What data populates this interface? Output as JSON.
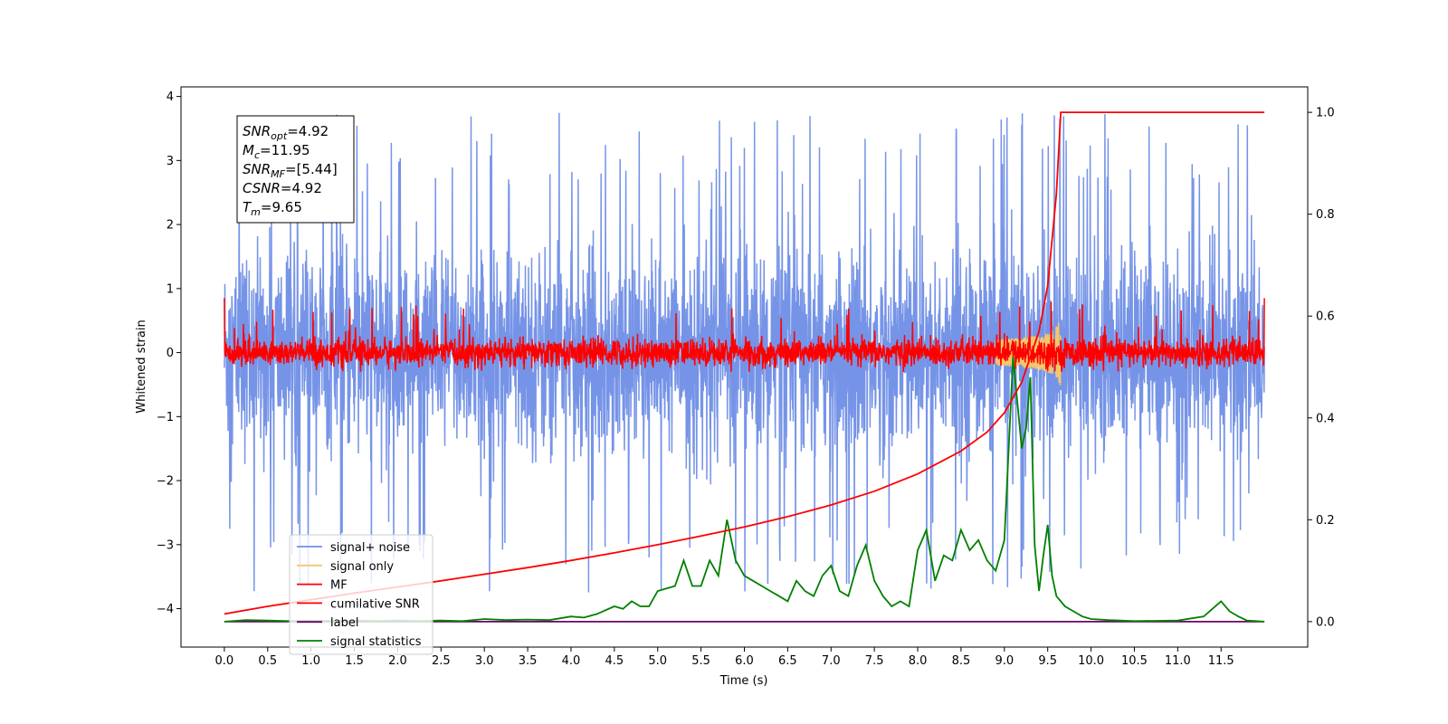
{
  "chart_data": {
    "type": "line",
    "xlabel": "Time (s)",
    "ylabel": "Whitened strain",
    "xlim": [
      -0.5,
      12.5
    ],
    "ylim": [
      -4.6,
      4.15
    ],
    "y2lim": [
      -0.05,
      1.05
    ],
    "xticks": [
      0.0,
      0.5,
      1.0,
      1.5,
      2.0,
      2.5,
      3.0,
      3.5,
      4.0,
      4.5,
      5.0,
      5.5,
      6.0,
      6.5,
      7.0,
      7.5,
      8.0,
      8.5,
      9.0,
      9.5,
      10.0,
      10.5,
      11.0,
      11.5
    ],
    "xtick_labels": [
      "0.0",
      "0.5",
      "1.0",
      "1.5",
      "2.0",
      "2.5",
      "3.0",
      "3.5",
      "4.0",
      "4.5",
      "5.0",
      "5.5",
      "6.0",
      "6.5",
      "7.0",
      "7.5",
      "8.0",
      "8.5",
      "9.0",
      "9.5",
      "10.0",
      "10.5",
      "11.0",
      "11.5"
    ],
    "yticks": [
      -4,
      -3,
      -2,
      -1,
      0,
      1,
      2,
      3,
      4
    ],
    "ytick_labels": [
      "−4",
      "−3",
      "−2",
      "−1",
      "0",
      "1",
      "2",
      "3",
      "4"
    ],
    "y2ticks": [
      0.0,
      0.2,
      0.4,
      0.6,
      0.8,
      1.0
    ],
    "y2tick_labels": [
      "0.0",
      "0.2",
      "0.4",
      "0.6",
      "0.8",
      "1.0"
    ],
    "grid": false,
    "legend_position": "lower-left",
    "annotation": {
      "lines": [
        {
          "sym": "SNR",
          "sub": "opt",
          "rest": "=4.92"
        },
        {
          "sym": "M",
          "sub": "c",
          "rest": "=11.95"
        },
        {
          "sym": "SNR",
          "sub": "MF",
          "rest": "=[5.44]"
        },
        {
          "sym": "CSNR",
          "sub": "",
          "rest": "=4.92"
        },
        {
          "sym": "T",
          "sub": "m",
          "rest": "=9.65"
        }
      ]
    },
    "series": [
      {
        "name": "signal+ noise",
        "axis": "left",
        "color": "#6f8ee6",
        "description": "whitened noise with embedded chirp, 0 to 12 s",
        "x_range": [
          0,
          12
        ],
        "amplitude_typical": 1.4,
        "amplitude_peak": 3.75
      },
      {
        "name": "signal only",
        "axis": "left",
        "color": "#f5c76b",
        "description": "chirp waveform ending at merger time",
        "x_range": [
          8.9,
          9.65
        ],
        "peak_amplitude": 0.85
      },
      {
        "name": "MF",
        "axis": "left",
        "color": "#ff0000",
        "description": "matched filter output around zero",
        "x_range": [
          0,
          12
        ],
        "amplitude_typical": 0.22
      },
      {
        "name": "cumilative SNR",
        "axis": "right",
        "color": "#ff0000",
        "x": [
          0.0,
          0.5,
          1.0,
          1.5,
          2.0,
          2.5,
          3.0,
          3.5,
          4.0,
          4.5,
          5.0,
          5.5,
          6.0,
          6.5,
          7.0,
          7.5,
          8.0,
          8.5,
          8.8,
          9.0,
          9.2,
          9.4,
          9.5,
          9.6,
          9.65,
          12.0
        ],
        "values": [
          0.015,
          0.03,
          0.043,
          0.056,
          0.068,
          0.08,
          0.093,
          0.106,
          0.12,
          0.135,
          0.151,
          0.168,
          0.186,
          0.206,
          0.229,
          0.256,
          0.29,
          0.335,
          0.372,
          0.41,
          0.47,
          0.57,
          0.66,
          0.84,
          1.0,
          1.0
        ]
      },
      {
        "name": "label",
        "axis": "right",
        "color": "#6a006a",
        "x": [
          0.0,
          12.0
        ],
        "values": [
          0.0,
          0.0
        ]
      },
      {
        "name": "signal statistics",
        "axis": "right",
        "color": "#008000",
        "x": [
          0.0,
          0.25,
          0.5,
          0.75,
          1.0,
          1.25,
          1.5,
          1.75,
          2.0,
          2.25,
          2.5,
          2.75,
          3.0,
          3.25,
          3.5,
          3.75,
          4.0,
          4.15,
          4.3,
          4.5,
          4.6,
          4.7,
          4.8,
          4.9,
          5.0,
          5.1,
          5.2,
          5.3,
          5.4,
          5.5,
          5.6,
          5.7,
          5.8,
          5.9,
          6.0,
          6.1,
          6.2,
          6.3,
          6.4,
          6.5,
          6.6,
          6.7,
          6.8,
          6.9,
          7.0,
          7.1,
          7.2,
          7.3,
          7.4,
          7.5,
          7.6,
          7.7,
          7.8,
          7.9,
          8.0,
          8.1,
          8.2,
          8.3,
          8.4,
          8.5,
          8.6,
          8.7,
          8.8,
          8.9,
          9.0,
          9.1,
          9.2,
          9.25,
          9.3,
          9.35,
          9.4,
          9.45,
          9.5,
          9.55,
          9.6,
          9.7,
          9.8,
          9.9,
          10.0,
          10.2,
          10.5,
          11.0,
          11.3,
          11.5,
          11.6,
          11.7,
          11.8,
          12.0
        ],
        "values": [
          0.0,
          0.003,
          0.002,
          0.001,
          0.002,
          0.001,
          0.002,
          0.001,
          0.002,
          0.001,
          0.002,
          0.001,
          0.005,
          0.003,
          0.004,
          0.003,
          0.01,
          0.008,
          0.015,
          0.03,
          0.025,
          0.04,
          0.03,
          0.03,
          0.06,
          0.065,
          0.07,
          0.12,
          0.07,
          0.07,
          0.12,
          0.09,
          0.2,
          0.12,
          0.09,
          0.08,
          0.07,
          0.06,
          0.05,
          0.04,
          0.08,
          0.06,
          0.05,
          0.09,
          0.11,
          0.06,
          0.05,
          0.11,
          0.15,
          0.08,
          0.05,
          0.03,
          0.04,
          0.03,
          0.14,
          0.18,
          0.08,
          0.13,
          0.12,
          0.18,
          0.14,
          0.16,
          0.12,
          0.1,
          0.16,
          0.52,
          0.34,
          0.38,
          0.48,
          0.15,
          0.06,
          0.13,
          0.19,
          0.09,
          0.05,
          0.03,
          0.02,
          0.01,
          0.005,
          0.003,
          0.001,
          0.002,
          0.01,
          0.04,
          0.02,
          0.01,
          0.002,
          0.0
        ]
      }
    ]
  }
}
